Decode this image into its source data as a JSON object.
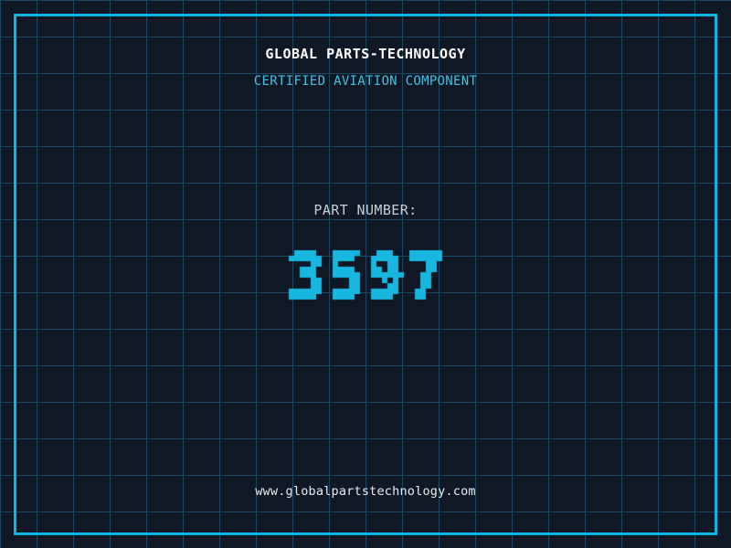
{
  "header": {
    "title": "GLOBAL PARTS-TECHNOLOGY",
    "subtitle": "CERTIFIED AVIATION COMPONENT"
  },
  "part": {
    "label": "PART NUMBER:",
    "number": "3597"
  },
  "footer": {
    "url": "www.globalpartstechnology.com"
  },
  "colors": {
    "background": "#101826",
    "grid_line": "#1b4660",
    "frame_accent": "#0fb4de",
    "number": "#18b7e0",
    "subtitle": "#3fc1e1",
    "title": "#ffffff",
    "label": "#c9cdd5",
    "url": "#e9ecef"
  }
}
